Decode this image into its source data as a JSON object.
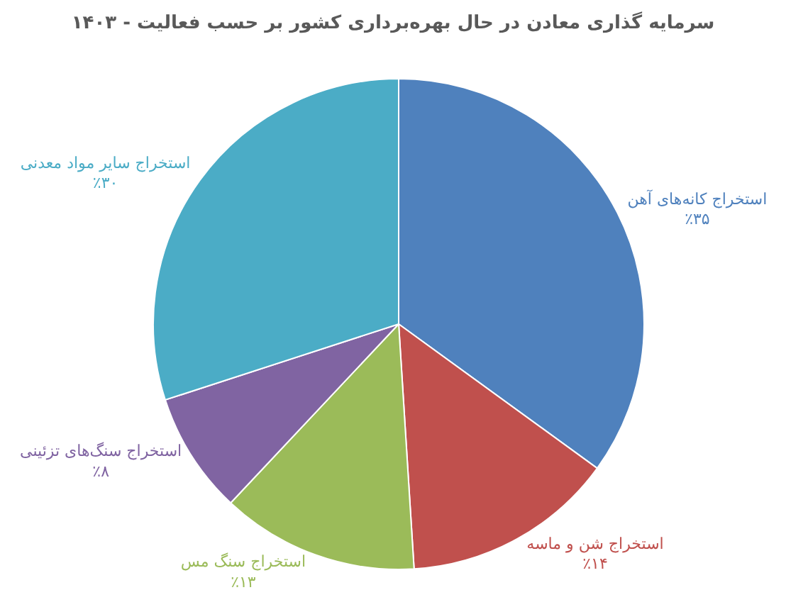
{
  "chart_data": {
    "type": "pie",
    "title": "سرمایه گذاری معادن در حال بهره‌برداری کشور بر حسب فعالیت - ۱۴۰۳",
    "categories": [
      "استخراج کانه‌های آهن",
      "استخراج شن و ماسه",
      "استخراج سنگ مس",
      "استخراج سنگ‌های تزئینی",
      "استخراج سایر مواد معدنی"
    ],
    "values": [
      35,
      14,
      13,
      8,
      30
    ],
    "value_labels": [
      "٪۳۵",
      "٪۱۴",
      "٪۱۳",
      "٪۸",
      "٪۳۰"
    ],
    "colors": [
      "#4f81bd",
      "#c0504d",
      "#9bbb59",
      "#8064a2",
      "#4bacc6"
    ],
    "legend": false
  }
}
